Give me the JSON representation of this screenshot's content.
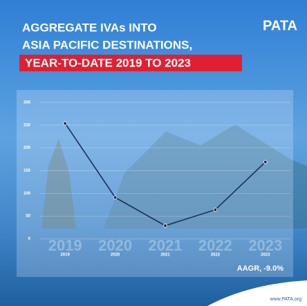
{
  "header": {
    "line1": "AGGREGATE IVAs INTO",
    "line2": "ASIA PACIFIC DESTINATIONS,",
    "line3": "YEAR-TO-DATE 2019 TO 2023",
    "logo": "PATA"
  },
  "chart_data": {
    "type": "line",
    "categories": [
      "2019",
      "2020",
      "2021",
      "2022",
      "2023"
    ],
    "series": [
      {
        "color": "#1c2f5a",
        "values": [
          254,
          91,
          29,
          64,
          169
        ]
      }
    ],
    "ylim": [
      0,
      300
    ],
    "yticks": [
      0,
      50,
      100,
      150,
      200,
      250,
      300
    ],
    "grid": true
  },
  "footer": {
    "aagr": "AAGR, -9.0%",
    "url": "www.PATA.org"
  }
}
